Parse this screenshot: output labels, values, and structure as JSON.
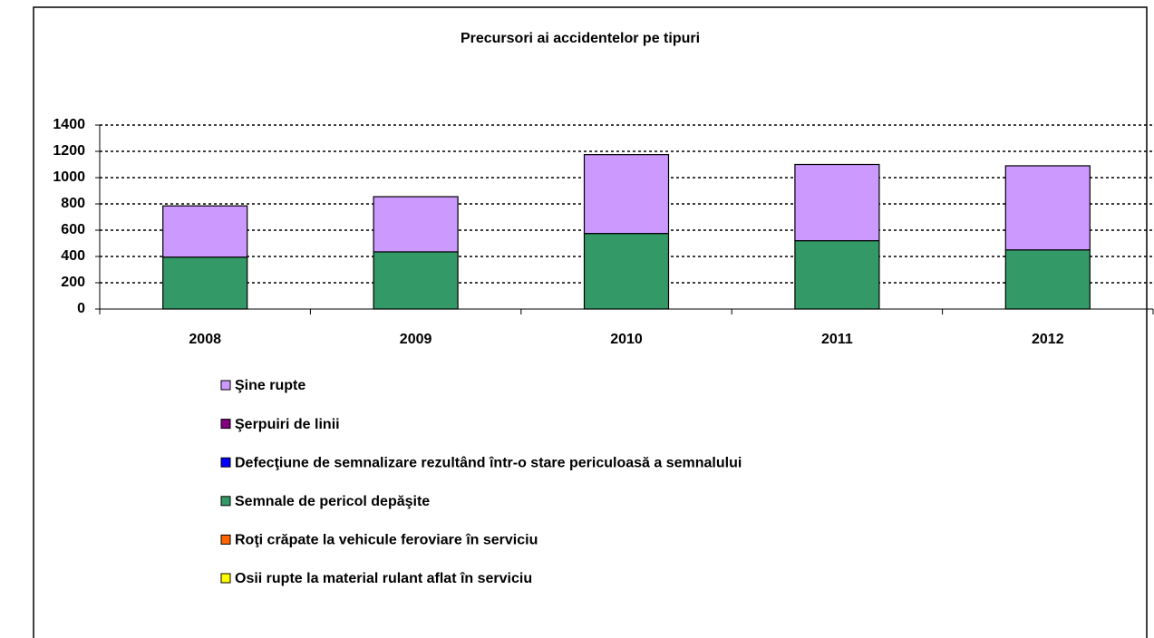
{
  "chart_data": {
    "type": "stacked_bar",
    "title": "Precursori ai accidentelor pe tipuri",
    "categories": [
      "2008",
      "2009",
      "2010",
      "2011",
      "2012"
    ],
    "series": [
      {
        "name": "Osii rupte la material rulant aflat în serviciu",
        "color": "#ffff00",
        "values": [
          0,
          0,
          0,
          0,
          0
        ]
      },
      {
        "name": "Roţi crăpate la vehicule feroviare în serviciu",
        "color": "#ff6600",
        "values": [
          0,
          0,
          0,
          0,
          0
        ]
      },
      {
        "name": "Semnale de pericol depăşite",
        "color": "#339966",
        "values": [
          395,
          435,
          575,
          520,
          450
        ]
      },
      {
        "name": "Defecţiune de semnalizare rezultând într-o stare periculoasă a semnalului",
        "color": "#0000ff",
        "values": [
          0,
          0,
          0,
          0,
          0
        ]
      },
      {
        "name": "Şerpuiri de linii",
        "color": "#800080",
        "values": [
          0,
          0,
          0,
          0,
          0
        ]
      },
      {
        "name": "Şine rupte",
        "color": "#cc99ff",
        "values": [
          390,
          420,
          600,
          580,
          640
        ]
      }
    ],
    "ylim": [
      0,
      1400
    ],
    "yticks": [
      0,
      200,
      400,
      600,
      800,
      1000,
      1200,
      1400
    ],
    "grid": true
  }
}
